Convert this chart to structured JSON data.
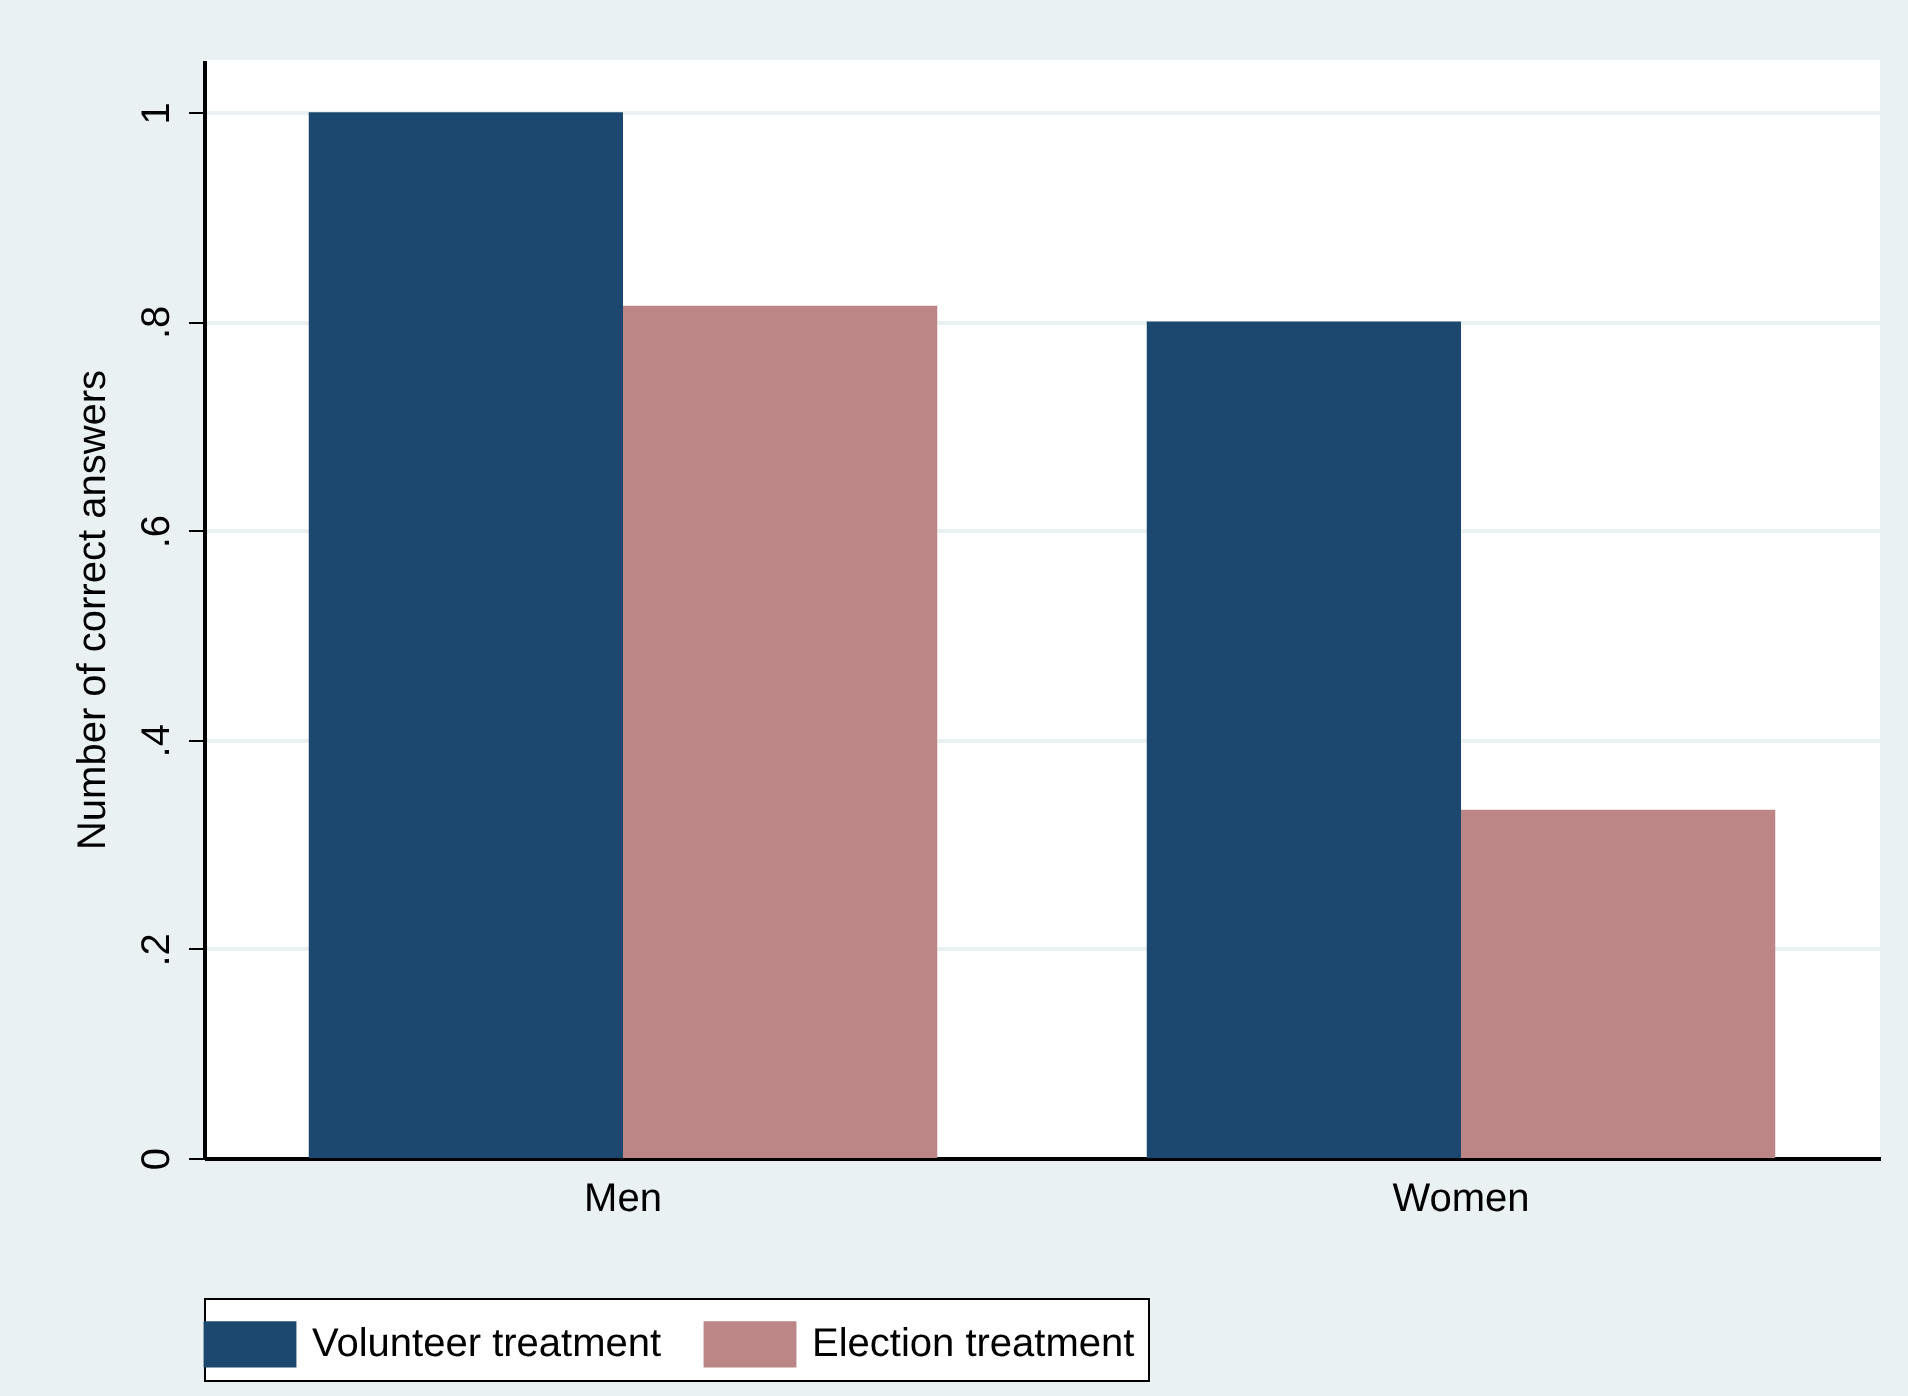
{
  "chart_data": {
    "type": "bar",
    "ylabel": "Number of correct answers",
    "categories": [
      "Men",
      "Women"
    ],
    "series": [
      {
        "name": "Volunteer treatment",
        "color": "#1c4870",
        "values": [
          1.0,
          0.8
        ]
      },
      {
        "name": "Election treatment",
        "color": "#bc8586",
        "values": [
          0.815,
          0.333
        ]
      }
    ],
    "ylim": [
      0,
      1.05
    ],
    "yticks": [
      0,
      {
        "value": 0.2,
        "label": ".2"
      },
      {
        "value": 0.4,
        "label": ".4"
      },
      {
        "value": 0.6,
        "label": ".6"
      },
      {
        "value": 0.8,
        "label": ".8"
      },
      1
    ],
    "grid": "y",
    "legend": "bottom"
  }
}
